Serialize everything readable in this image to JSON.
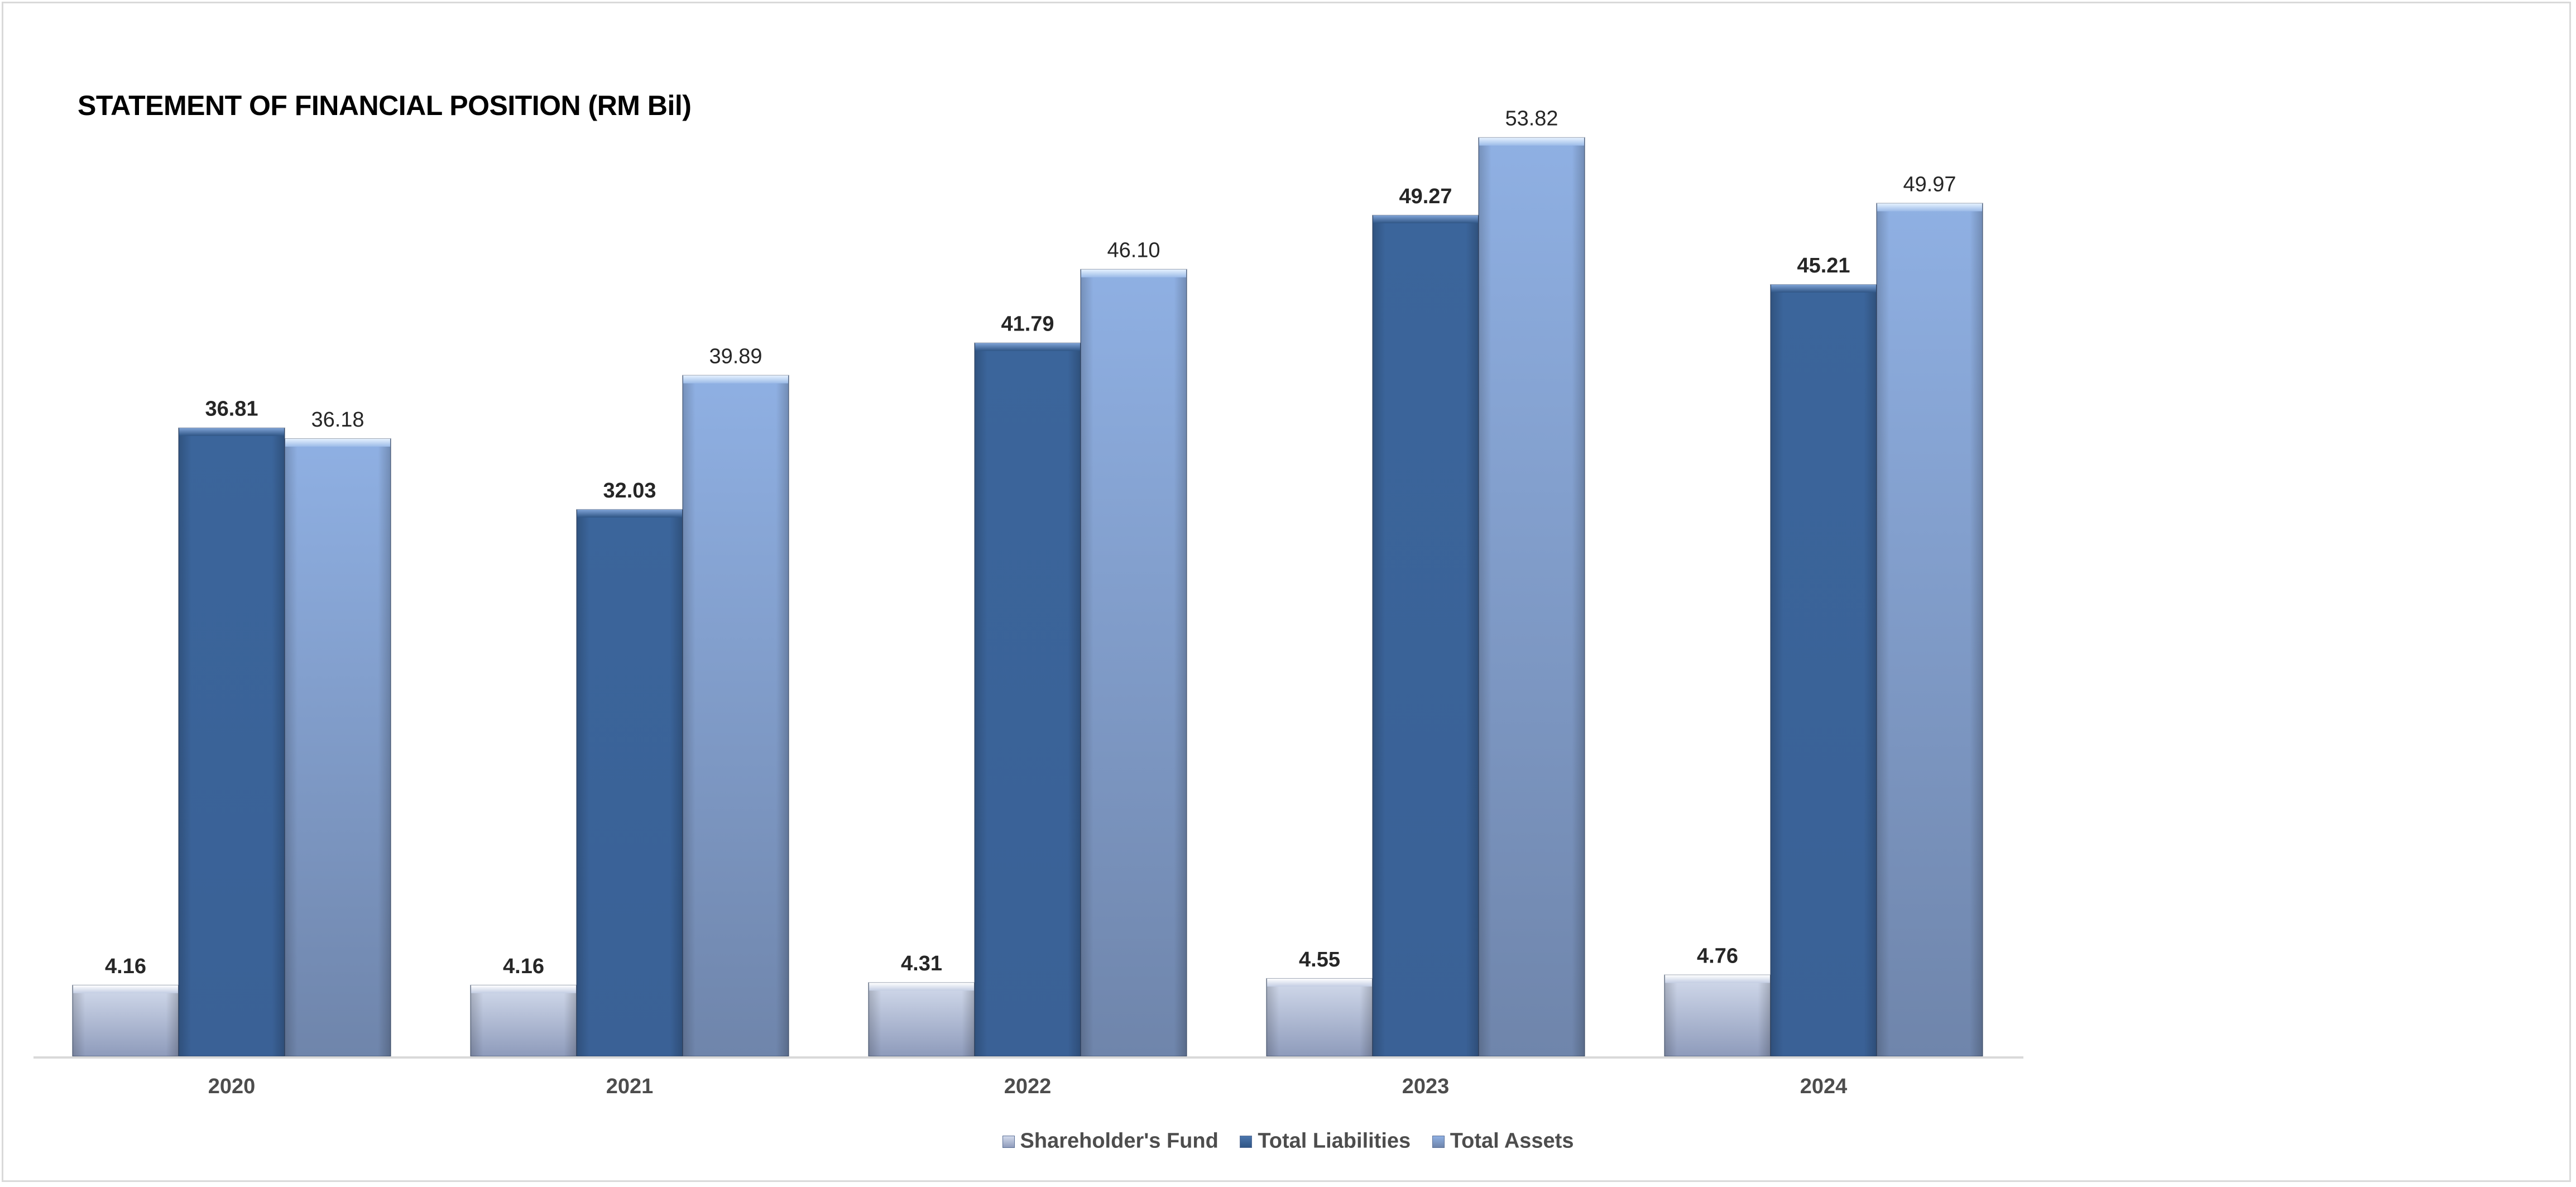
{
  "chart_data": {
    "type": "bar",
    "title": "STATEMENT OF FINANCIAL POSITION (RM Bil)",
    "xlabel": "",
    "ylabel": "",
    "categories": [
      "2020",
      "2021",
      "2022",
      "2023",
      "2024"
    ],
    "series": [
      {
        "name": "Shareholder's Fund",
        "values": [
          4.16,
          4.16,
          4.31,
          4.55,
          4.76
        ],
        "labels": [
          "4.16",
          "4.16",
          "4.31",
          "4.55",
          "4.76"
        ],
        "color": "#b4bfd8",
        "label_bold": true
      },
      {
        "name": "Total Liabilities",
        "values": [
          36.81,
          32.03,
          41.79,
          49.27,
          45.21
        ],
        "labels": [
          "36.81",
          "32.03",
          "41.79",
          "49.27",
          "45.21"
        ],
        "color": "#3d6699",
        "label_bold": true
      },
      {
        "name": "Total Assets",
        "values": [
          36.18,
          39.89,
          46.1,
          53.82,
          49.97
        ],
        "labels": [
          "36.18",
          "39.89",
          "46.10",
          "53.82",
          "49.97"
        ],
        "color": "#8eaee0",
        "label_bold": false
      }
    ],
    "ylim": [
      0,
      60
    ],
    "grid": false,
    "legend_position": "bottom",
    "colors": {
      "axis_line": "#d9d9d9",
      "label_text": "#262626",
      "tick_text": "#4d4d4d"
    }
  }
}
